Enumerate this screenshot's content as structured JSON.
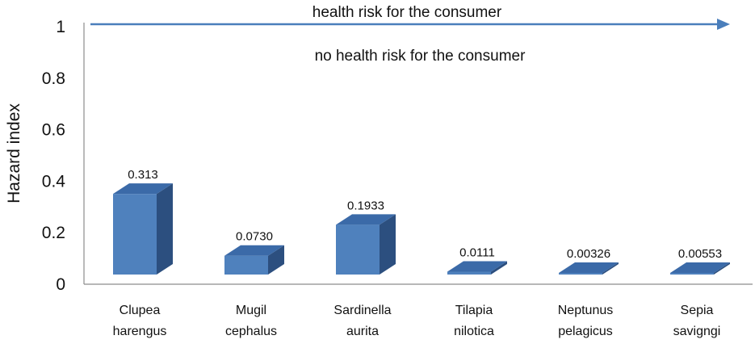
{
  "chart_data": {
    "type": "bar",
    "categories": [
      [
        "Clupea",
        "harengus"
      ],
      [
        "Mugil",
        "cephalus"
      ],
      [
        "Sardinella",
        "aurita"
      ],
      [
        "Tilapia",
        "nilotica"
      ],
      [
        "Neptunus",
        "pelagicus"
      ],
      [
        "Sepia",
        "savigngi"
      ]
    ],
    "values": [
      0.313,
      0.073,
      0.1933,
      0.0111,
      0.00326,
      0.00553
    ],
    "data_labels": [
      "0.313",
      "0.0730",
      "0.1933",
      "0.0111",
      "0.00326",
      "0.00553"
    ],
    "ylabel": "Hazard index",
    "ylim": [
      0,
      1
    ],
    "yticks": [
      "0",
      "0.2",
      "0.4",
      "0.6",
      "0.8",
      "1"
    ],
    "grid": false,
    "bar_style": "3d",
    "annotations": {
      "arrow_label": "health risk for the consumer",
      "below_arrow_label": "no health risk for the consumer"
    },
    "colors": {
      "bar_front": "#4f81bd",
      "bar_top": "#3b6aa8",
      "bar_side": "#2c4f7f",
      "arrow": "#4a7ebb",
      "axis": "#8c8c8c"
    }
  }
}
